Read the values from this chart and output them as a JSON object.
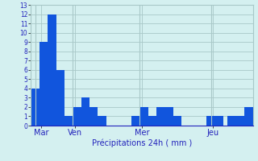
{
  "values": [
    4,
    4,
    9,
    9,
    12,
    12,
    6,
    6,
    1,
    1,
    2,
    2,
    3,
    3,
    2,
    2,
    1,
    1,
    0,
    0,
    0,
    0,
    0,
    0,
    1,
    1,
    2,
    2,
    1,
    1,
    2,
    2,
    2,
    2,
    1,
    1,
    0,
    0,
    0,
    0,
    0,
    0,
    1,
    1,
    1,
    1,
    0,
    1,
    1,
    1,
    1,
    2,
    2
  ],
  "bar_color": "#1155dd",
  "bg_color": "#d4f0f0",
  "grid_color": "#a8c8c8",
  "xlabel": "Précipitations 24h ( mm )",
  "xlabel_color": "#2222bb",
  "tick_color": "#2222bb",
  "day_labels": [
    "Mar",
    "Ven",
    "Mer",
    "Jeu"
  ],
  "day_positions": [
    2,
    10,
    26,
    43
  ],
  "vline_positions": [
    1,
    10,
    26,
    43
  ],
  "ylim": [
    0,
    13
  ],
  "yticks": [
    0,
    1,
    2,
    3,
    4,
    5,
    6,
    7,
    8,
    9,
    10,
    11,
    12,
    13
  ],
  "ytick_labels": [
    "0",
    "1",
    "2",
    "3",
    "4",
    "5",
    "6",
    "7",
    "8",
    "9",
    "10",
    "11",
    "12",
    "13"
  ]
}
